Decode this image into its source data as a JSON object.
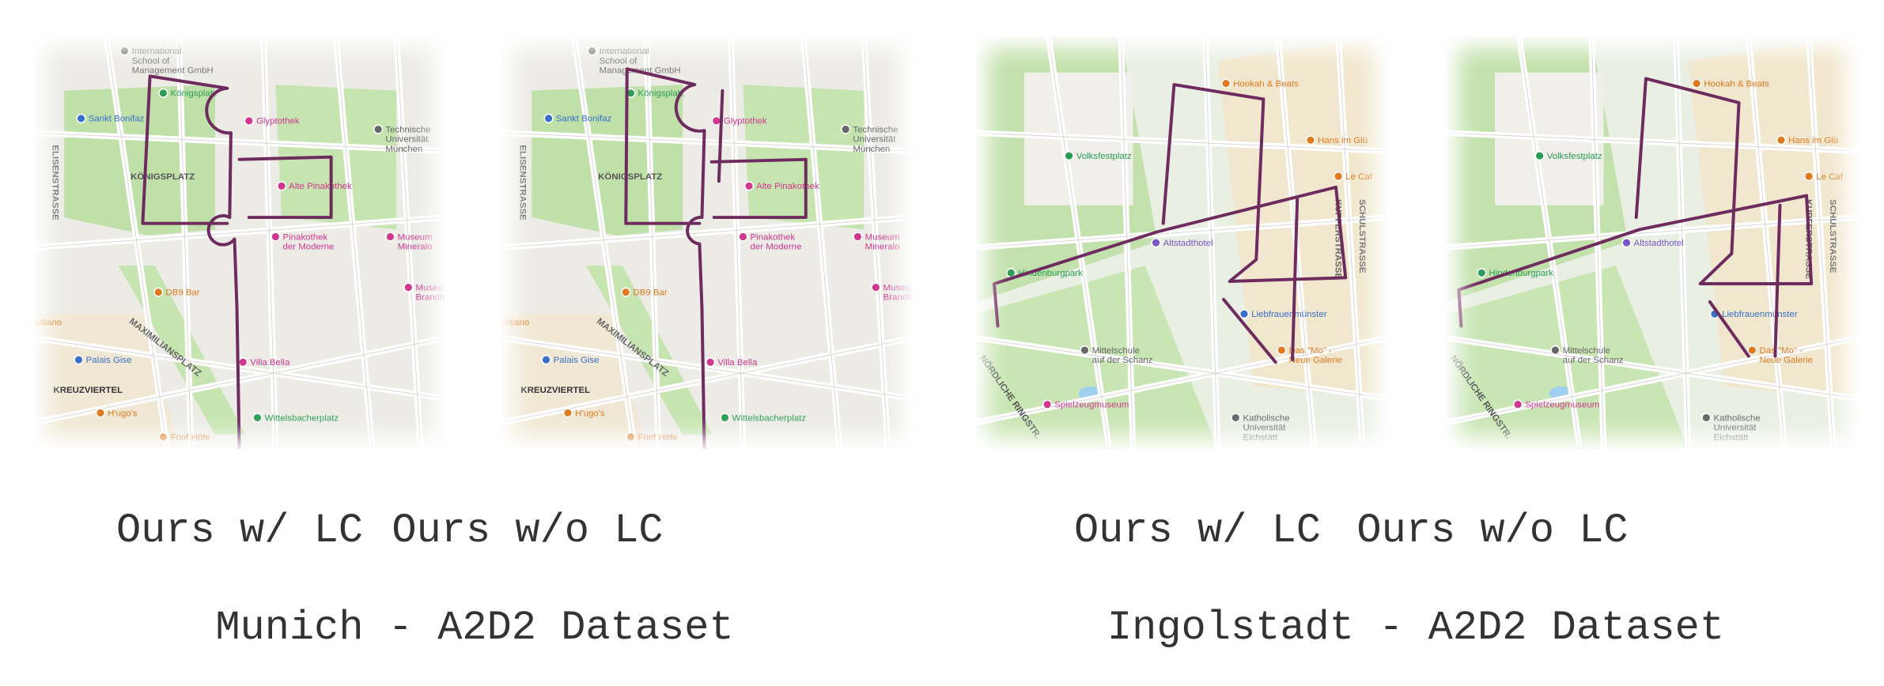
{
  "groups": [
    {
      "title": "Munich - A2D2 Dataset",
      "panels": [
        {
          "caption": "Ours w/ LC"
        },
        {
          "caption": "Ours w/o LC"
        }
      ],
      "map_labels": [
        [
          "International",
          "School of",
          "Management GmbH"
        ],
        [
          "Königsplatz"
        ],
        [
          "Sankt Bonifaz"
        ],
        [
          "Glyptothek"
        ],
        [
          "Technische",
          "Universität",
          "München"
        ],
        [
          "KÖNIGSPLATZ"
        ],
        [
          "Alte Pinakothek"
        ],
        [
          "Pinakothek",
          "der Moderne"
        ],
        [
          "Museum",
          "Mineralo"
        ],
        [
          "DB9 Bar"
        ],
        [
          "Palais Gise"
        ],
        [
          "KREUZVIERTEL"
        ],
        [
          "Villa Bella"
        ],
        [
          "H'ugo's"
        ],
        [
          "Fünf Höfe"
        ],
        [
          "Wittelsbacherplatz"
        ],
        [
          "MAXIMILIANSPLATZ"
        ],
        [
          "ELISENSTRASSE"
        ],
        [
          "Museu",
          "Brandh"
        ],
        [
          "tidiano"
        ]
      ]
    },
    {
      "title": "Ingolstadt - A2D2 Dataset",
      "panels": [
        {
          "caption": "Ours w/ LC"
        },
        {
          "caption": "Ours w/o LC"
        }
      ],
      "map_labels": [
        [
          "Hookah & Beats"
        ],
        [
          "Volksfestplatz"
        ],
        [
          "Hans im Glü"
        ],
        [
          "Le Caf"
        ],
        [
          "Altstadthotel"
        ],
        [
          "Hindenburgpark"
        ],
        [
          "Liebfrauenmünster"
        ],
        [
          "Mittelschule",
          "auf der Schanz"
        ],
        [
          "Das \"Mo\" -",
          "Neue Galerie"
        ],
        [
          "Spielzeugmuseum"
        ],
        [
          "Katholische",
          "Universität",
          "Eichstätt"
        ],
        [
          "NÖRDLICHE RINGSTR."
        ],
        [
          "SCHULSTRASSE"
        ],
        [
          "KUPFERSTRASSE"
        ]
      ]
    }
  ]
}
